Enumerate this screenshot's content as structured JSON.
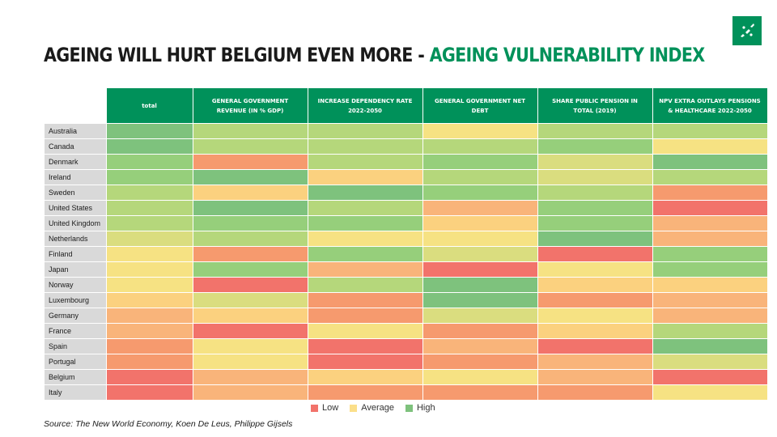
{
  "title": {
    "part1": "AGEING WILL HURT BELGIUM EVEN MORE - ",
    "part2": "AGEING VULNERABILITY INDEX"
  },
  "colors": {
    "brand": "#00915a",
    "scale": {
      "1": "#f2736b",
      "1.5": "#f69a6e",
      "2": "#f9b47a",
      "2.5": "#fbd17f",
      "3": "#f6e283",
      "3.5": "#dadd7f",
      "4": "#b5d77b",
      "4.5": "#96cf7b",
      "5": "#7ec27d"
    }
  },
  "chart_data": {
    "type": "heatmap",
    "title": "AGEING WILL HURT BELGIUM EVEN MORE - AGEING VULNERABILITY INDEX",
    "value_scale": "1 = Low, 3 = Average, 5 = High",
    "columns": [
      "total",
      "GENERAL GOVERNMENT REVENUE (IN % GDP)",
      "INCREASE DEPENDENCY RATE 2022-2050",
      "GENERAL GOVERNMENT NET DEBT",
      "SHARE PUBLIC PENSION IN TOTAL (2019)",
      "NPV EXTRA OUTLAYS PENSIONS & HEALTHCARE 2022-2050"
    ],
    "rows": [
      {
        "country": "Australia",
        "values": [
          5,
          4,
          4,
          3,
          4,
          4
        ]
      },
      {
        "country": "Canada",
        "values": [
          5,
          4,
          4,
          4,
          4.5,
          3
        ]
      },
      {
        "country": "Denmark",
        "values": [
          4.5,
          1.5,
          4,
          4.5,
          3.5,
          5
        ]
      },
      {
        "country": "Ireland",
        "values": [
          4.5,
          5,
          2.5,
          4,
          3.5,
          4
        ]
      },
      {
        "country": "Sweden",
        "values": [
          4,
          2.5,
          5,
          4.5,
          4,
          1.5
        ]
      },
      {
        "country": "United States",
        "values": [
          4,
          5,
          4,
          2,
          4.5,
          1
        ]
      },
      {
        "country": "United Kingdom",
        "values": [
          4,
          4.5,
          4.5,
          2.5,
          4.5,
          2
        ]
      },
      {
        "country": "Netherlands",
        "values": [
          3.5,
          4,
          3,
          3,
          5,
          2
        ]
      },
      {
        "country": "Finland",
        "values": [
          3,
          1.5,
          4.5,
          3.5,
          1,
          4.5
        ]
      },
      {
        "country": "Japan",
        "values": [
          3,
          4.5,
          2,
          1,
          3,
          4.5
        ]
      },
      {
        "country": "Norway",
        "values": [
          3,
          1,
          4,
          5,
          2.5,
          2.5
        ]
      },
      {
        "country": "Luxembourg",
        "values": [
          2.5,
          3.5,
          1.5,
          5,
          1.5,
          2
        ]
      },
      {
        "country": "Germany",
        "values": [
          2,
          2.5,
          1.5,
          3.5,
          3,
          2
        ]
      },
      {
        "country": "France",
        "values": [
          2,
          1,
          3,
          1.5,
          2.5,
          4
        ]
      },
      {
        "country": "Spain",
        "values": [
          1.5,
          3,
          1,
          2,
          1,
          5
        ]
      },
      {
        "country": "Portugal",
        "values": [
          1.5,
          3,
          1,
          1.5,
          2,
          3.5
        ]
      },
      {
        "country": "Belgium",
        "values": [
          1,
          2,
          2.5,
          3,
          2,
          1
        ]
      },
      {
        "country": "Italy",
        "values": [
          1,
          2,
          1.5,
          1.5,
          1.5,
          3
        ]
      }
    ]
  },
  "legend": [
    {
      "label": "Low",
      "color": "#f2736b"
    },
    {
      "label": "Average",
      "color": "#fbdf8a"
    },
    {
      "label": "High",
      "color": "#7ec27d"
    }
  ],
  "source": "Source: The New World Economy, Koen De Leus, Philippe Gijsels"
}
